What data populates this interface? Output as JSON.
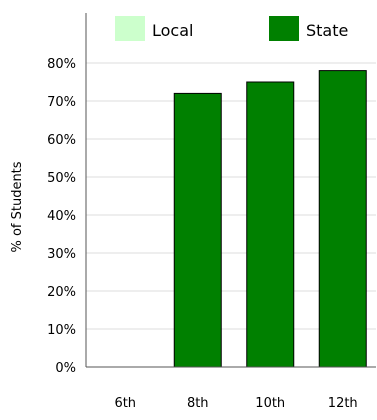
{
  "chart_data": {
    "type": "bar",
    "categories": [
      "6th",
      "8th",
      "10th",
      "12th"
    ],
    "series": [
      {
        "name": "Local",
        "color": "#ccffcc",
        "values": [
          null,
          null,
          null,
          null
        ]
      },
      {
        "name": "State",
        "color": "#008000",
        "values": [
          null,
          72,
          75,
          78
        ]
      }
    ],
    "ylabel": "% of Students",
    "ylim": [
      0,
      80
    ],
    "yticks": [
      0,
      10,
      20,
      30,
      40,
      50,
      60,
      70,
      80
    ],
    "ytick_labels": [
      "0%",
      "10%",
      "20%",
      "30%",
      "40%",
      "50%",
      "60%",
      "70%",
      "80%"
    ],
    "grid": true,
    "legend_position": "top"
  }
}
